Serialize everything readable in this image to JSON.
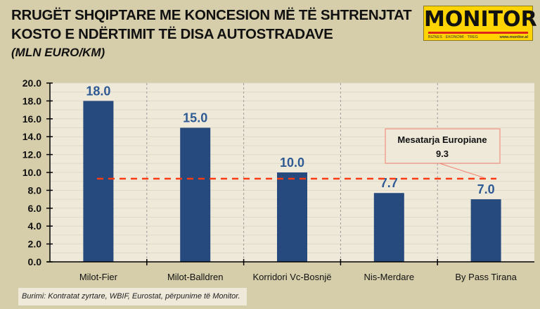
{
  "header": {
    "title_line1": "RRUGËT SHQIPTARE ME KONCESION MË TË SHTRENJTAT",
    "title_line2": "KOSTO E NDËRTIMIT TË DISA AUTOSTRADAVE",
    "unit": "(MLN EURO/KM)"
  },
  "logo": {
    "brand": "MONITOR",
    "tagline": "BIZNES · EKONOMI · TREG",
    "website": "www.monitor.al"
  },
  "chart_data": {
    "type": "bar",
    "title": "RRUGËT SHQIPTARE ME KONCESION MË TË SHTRENJTAT KOSTO E NDËRTIMIT TË DISA AUTOSTRADAVE",
    "ylabel": "(MLN EURO/KM)",
    "categories": [
      "Milot-Fier",
      "Milot-Balldren",
      "Korridori Vc-Bosnjë",
      "Nis-Merdare",
      "By Pass Tirana"
    ],
    "values": [
      18.0,
      15.0,
      10.0,
      7.7,
      7.0
    ],
    "value_labels": [
      "18.0",
      "15.0",
      "10.0",
      "7.7",
      "7.0"
    ],
    "ylim": [
      0,
      20
    ],
    "yticks": [
      "0.0",
      "2.0",
      "4.0",
      "6.0",
      "8.0",
      "10.0",
      "12.0",
      "14.0",
      "16.0",
      "18.0",
      "20.0"
    ],
    "reference_line": {
      "label": "Mesatarja Europiane",
      "value": 9.3,
      "value_label": "9.3"
    },
    "grid": true,
    "colors": {
      "bar": "#264a7d",
      "label": "#2e5a94",
      "reference": "#ff3b14",
      "plot_bg": "#efe9da"
    }
  },
  "source": "Burimi: Kontratat zyrtare, WBIF, Eurostat, përpunime të Monitor."
}
